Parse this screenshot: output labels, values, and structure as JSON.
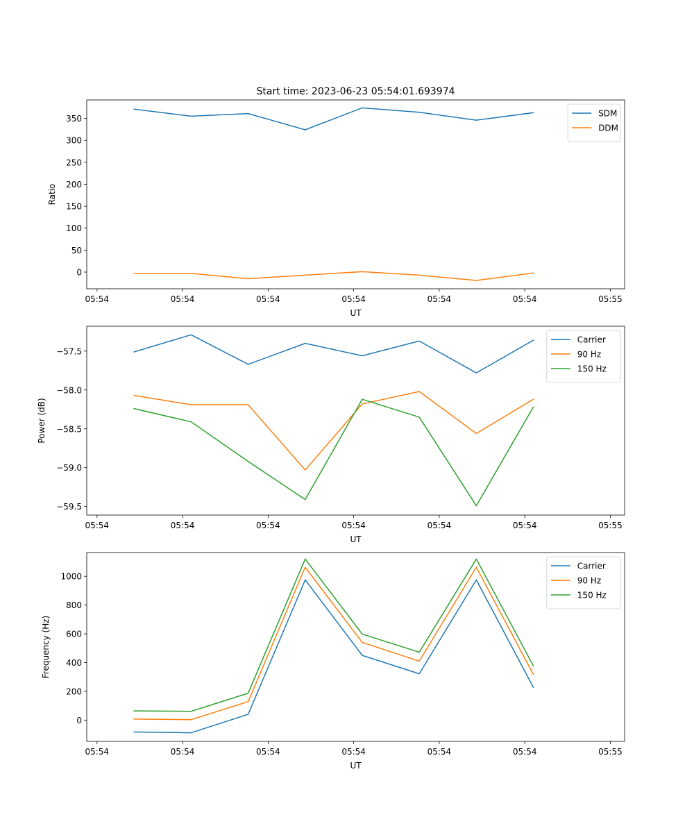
{
  "chart_data": [
    {
      "type": "line",
      "title": "Start time: 2023-06-23 05:54:01.693974",
      "xlabel": "UT",
      "ylabel": "Ratio",
      "x": [
        1,
        2,
        3,
        4,
        5,
        6,
        7,
        8
      ],
      "xlim": [
        0.17,
        9.6
      ],
      "xticks": [
        {
          "value": 0.35,
          "label": "05:54"
        },
        {
          "value": 1.85,
          "label": "05:54"
        },
        {
          "value": 3.35,
          "label": "05:54"
        },
        {
          "value": 4.85,
          "label": "05:54"
        },
        {
          "value": 6.35,
          "label": "05:54"
        },
        {
          "value": 7.85,
          "label": "05:54"
        },
        {
          "value": 9.35,
          "label": "05:55"
        }
      ],
      "ylim": [
        -38,
        392
      ],
      "yticks": [
        0,
        50,
        100,
        150,
        200,
        250,
        300,
        350
      ],
      "legend": "top-right",
      "series": [
        {
          "name": "SDM",
          "color": "#1f77b4",
          "values": [
            371,
            355,
            361,
            324,
            374,
            364,
            346,
            363
          ]
        },
        {
          "name": "DDM",
          "color": "#ff7f0e",
          "values": [
            -3,
            -3,
            -15,
            -7,
            1,
            -7,
            -19,
            -2
          ]
        }
      ]
    },
    {
      "type": "line",
      "xlabel": "UT",
      "ylabel": "Power (dB)",
      "x": [
        1,
        2,
        3,
        4,
        5,
        6,
        7,
        8
      ],
      "xlim": [
        0.17,
        9.6
      ],
      "xticks": [
        {
          "value": 0.35,
          "label": "05:54"
        },
        {
          "value": 1.85,
          "label": "05:54"
        },
        {
          "value": 3.35,
          "label": "05:54"
        },
        {
          "value": 4.85,
          "label": "05:54"
        },
        {
          "value": 6.35,
          "label": "05:54"
        },
        {
          "value": 7.85,
          "label": "05:54"
        },
        {
          "value": 9.35,
          "label": "05:55"
        }
      ],
      "ylim": [
        -59.61,
        -57.18
      ],
      "yticks": [
        {
          "value": -57.5,
          "label": "−57.5"
        },
        {
          "value": -58.0,
          "label": "−58.0"
        },
        {
          "value": -58.5,
          "label": "−58.5"
        },
        {
          "value": -59.0,
          "label": "−59.0"
        },
        {
          "value": -59.5,
          "label": "−59.5"
        }
      ],
      "legend": "top-right",
      "series": [
        {
          "name": "Carrier",
          "color": "#1f77b4",
          "values": [
            -57.51,
            -57.29,
            -57.67,
            -57.4,
            -57.56,
            -57.37,
            -57.78,
            -57.36
          ]
        },
        {
          "name": "90 Hz",
          "color": "#ff7f0e",
          "values": [
            -58.07,
            -58.19,
            -58.19,
            -59.03,
            -58.18,
            -58.02,
            -58.56,
            -58.12
          ]
        },
        {
          "name": "150 Hz",
          "color": "#2ca02c",
          "values": [
            -58.24,
            -58.41,
            -58.92,
            -59.41,
            -58.12,
            -58.35,
            -59.49,
            -58.22
          ]
        }
      ]
    },
    {
      "type": "line",
      "xlabel": "UT",
      "ylabel": "Frequency (Hz)",
      "x": [
        1,
        2,
        3,
        4,
        5,
        6,
        7,
        8
      ],
      "xlim": [
        0.17,
        9.6
      ],
      "xticks": [
        {
          "value": 0.35,
          "label": "05:54"
        },
        {
          "value": 1.85,
          "label": "05:54"
        },
        {
          "value": 3.35,
          "label": "05:54"
        },
        {
          "value": 4.85,
          "label": "05:54"
        },
        {
          "value": 6.35,
          "label": "05:54"
        },
        {
          "value": 7.85,
          "label": "05:54"
        },
        {
          "value": 9.35,
          "label": "05:55"
        }
      ],
      "ylim": [
        -148,
        1165
      ],
      "yticks": [
        0,
        200,
        400,
        600,
        800,
        1000
      ],
      "legend": "top-right",
      "series": [
        {
          "name": "Carrier",
          "color": "#1f77b4",
          "values": [
            -83,
            -88,
            40,
            975,
            450,
            322,
            975,
            228
          ]
        },
        {
          "name": "90 Hz",
          "color": "#ff7f0e",
          "values": [
            7,
            3,
            128,
            1063,
            540,
            410,
            1063,
            318
          ]
        },
        {
          "name": "150 Hz",
          "color": "#2ca02c",
          "values": [
            64,
            61,
            187,
            1120,
            598,
            472,
            1120,
            377
          ]
        }
      ]
    }
  ]
}
